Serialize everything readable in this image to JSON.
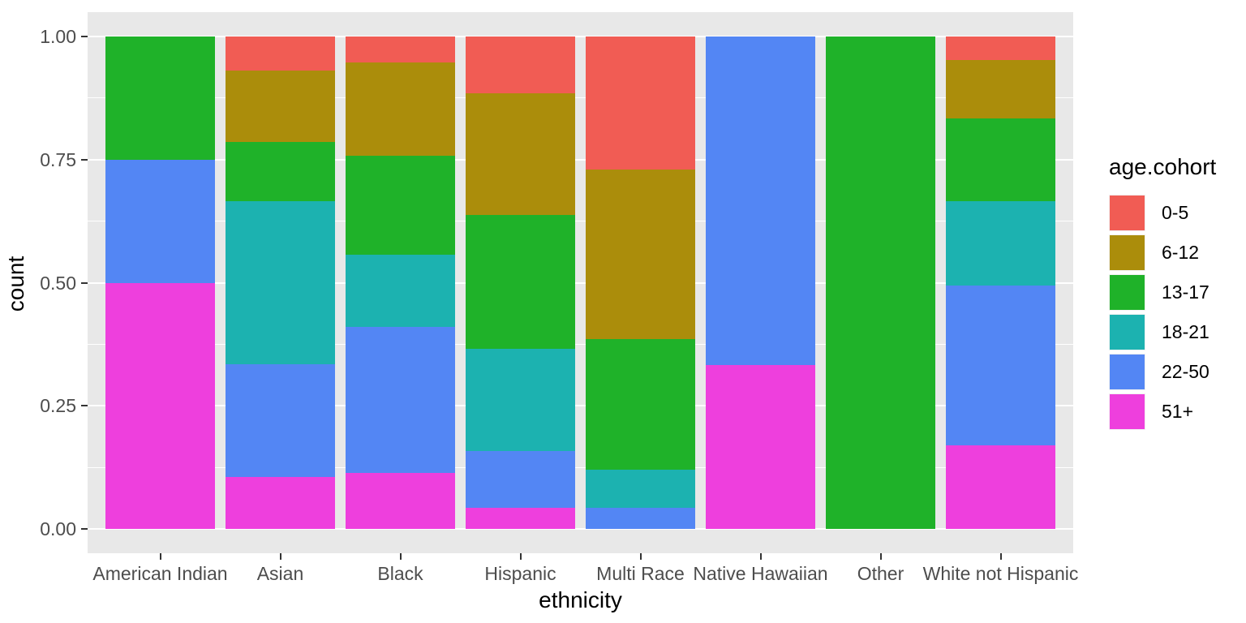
{
  "chart_data": {
    "type": "bar",
    "stacked": true,
    "normalized": true,
    "title": "",
    "xlabel": "ethnicity",
    "ylabel": "count",
    "ylim": [
      0,
      1
    ],
    "grid": true,
    "panel_bg": "#E8E8E8",
    "grid_color": "#FFFFFF",
    "tick_label_color": "#4D4D4D",
    "y_major_ticks": [
      1.0,
      0.75,
      0.5,
      0.25,
      0.0
    ],
    "y_tick_labels": [
      "1.00",
      "0.75",
      "0.50",
      "0.25",
      "0.00"
    ],
    "y_minor_ticks": [
      0.875,
      0.625,
      0.375,
      0.125
    ],
    "categories": [
      "American Indian",
      "Asian",
      "Black",
      "Hispanic",
      "Multi Race",
      "Native Hawaiian",
      "Other",
      "White not Hispanic"
    ],
    "legend_title": "age.cohort",
    "legend_position": "right",
    "stack_order_top_to_bottom": [
      "0-5",
      "6-12",
      "13-17",
      "18-21",
      "22-50",
      "51+"
    ],
    "series": [
      {
        "name": "0-5",
        "color": "#F15C54",
        "values": [
          0,
          0.07,
          0.053,
          0.115,
          0.271,
          0,
          0,
          0.048
        ]
      },
      {
        "name": "6-12",
        "color": "#AB8D0B",
        "values": [
          0,
          0.145,
          0.19,
          0.248,
          0.344,
          0,
          0,
          0.119
        ]
      },
      {
        "name": "13-17",
        "color": "#1FB229",
        "values": [
          0.25,
          0.12,
          0.2,
          0.271,
          0.264,
          0,
          1,
          0.167
        ]
      },
      {
        "name": "18-21",
        "color": "#1CB2B0",
        "values": [
          0,
          0.33,
          0.147,
          0.208,
          0.078,
          0,
          0,
          0.171
        ]
      },
      {
        "name": "22-50",
        "color": "#5386F4",
        "values": [
          0.25,
          0.23,
          0.297,
          0.115,
          0.043,
          0.667,
          0,
          0.326
        ]
      },
      {
        "name": "51+",
        "color": "#EE3FDD",
        "values": [
          0.5,
          0.105,
          0.113,
          0.043,
          0,
          0.333,
          0,
          0.169
        ]
      }
    ]
  }
}
